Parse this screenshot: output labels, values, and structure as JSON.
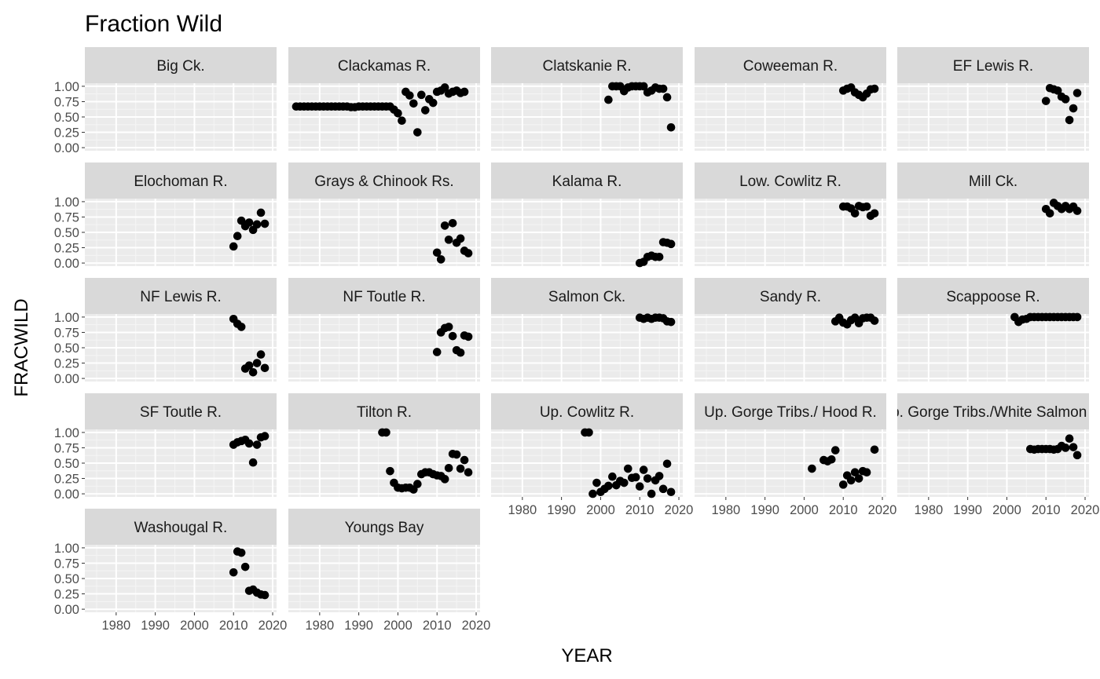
{
  "chart_data": {
    "type": "scatter",
    "title": "Fraction Wild",
    "xlabel": "YEAR",
    "ylabel": "FRACWILD",
    "xlim": [
      1972,
      2021
    ],
    "ylim": [
      -0.05,
      1.05
    ],
    "x_ticks": [
      1980,
      1990,
      2000,
      2010,
      2020
    ],
    "y_ticks": [
      0.0,
      0.25,
      0.5,
      0.75,
      1.0
    ],
    "y_tick_labels": [
      "0.00",
      "0.25",
      "0.50",
      "0.75",
      "1.00"
    ],
    "grid": true,
    "panel_background": "#ebebeb",
    "strip_background": "#d9d9d9",
    "point_color": "#000000",
    "facets": [
      {
        "name": "Big Ck.",
        "points": []
      },
      {
        "name": "Clackamas R.",
        "points": [
          [
            1974,
            0.67
          ],
          [
            1975,
            0.67
          ],
          [
            1976,
            0.67
          ],
          [
            1977,
            0.67
          ],
          [
            1978,
            0.67
          ],
          [
            1979,
            0.67
          ],
          [
            1980,
            0.67
          ],
          [
            1981,
            0.67
          ],
          [
            1982,
            0.67
          ],
          [
            1983,
            0.67
          ],
          [
            1984,
            0.67
          ],
          [
            1985,
            0.67
          ],
          [
            1986,
            0.67
          ],
          [
            1987,
            0.67
          ],
          [
            1988,
            0.66
          ],
          [
            1989,
            0.66
          ],
          [
            1990,
            0.67
          ],
          [
            1991,
            0.67
          ],
          [
            1992,
            0.67
          ],
          [
            1993,
            0.67
          ],
          [
            1994,
            0.67
          ],
          [
            1995,
            0.67
          ],
          [
            1996,
            0.67
          ],
          [
            1997,
            0.67
          ],
          [
            1998,
            0.67
          ],
          [
            1999,
            0.62
          ],
          [
            2000,
            0.56
          ],
          [
            2001,
            0.44
          ],
          [
            2002,
            0.91
          ],
          [
            2003,
            0.85
          ],
          [
            2004,
            0.72
          ],
          [
            2005,
            0.25
          ],
          [
            2006,
            0.86
          ],
          [
            2007,
            0.61
          ],
          [
            2008,
            0.79
          ],
          [
            2009,
            0.73
          ],
          [
            2010,
            0.91
          ],
          [
            2011,
            0.93
          ],
          [
            2012,
            0.98
          ],
          [
            2013,
            0.88
          ],
          [
            2014,
            0.91
          ],
          [
            2015,
            0.93
          ],
          [
            2016,
            0.89
          ],
          [
            2017,
            0.91
          ]
        ]
      },
      {
        "name": "Clatskanie R.",
        "points": [
          [
            2002,
            0.78
          ],
          [
            2003,
            1.0
          ],
          [
            2004,
            1.0
          ],
          [
            2005,
            1.0
          ],
          [
            2006,
            0.92
          ],
          [
            2007,
            0.98
          ],
          [
            2008,
            1.0
          ],
          [
            2009,
            1.0
          ],
          [
            2010,
            1.0
          ],
          [
            2011,
            1.0
          ],
          [
            2012,
            0.9
          ],
          [
            2013,
            0.93
          ],
          [
            2014,
            0.98
          ],
          [
            2015,
            0.96
          ],
          [
            2016,
            0.96
          ],
          [
            2017,
            0.82
          ],
          [
            2018,
            0.33
          ]
        ]
      },
      {
        "name": "Coweeman R.",
        "points": [
          [
            2010,
            0.93
          ],
          [
            2011,
            0.96
          ],
          [
            2012,
            0.98
          ],
          [
            2013,
            0.9
          ],
          [
            2014,
            0.86
          ],
          [
            2015,
            0.82
          ],
          [
            2016,
            0.88
          ],
          [
            2017,
            0.95
          ],
          [
            2018,
            0.96
          ]
        ]
      },
      {
        "name": "EF Lewis R.",
        "points": [
          [
            2010,
            0.76
          ],
          [
            2011,
            0.97
          ],
          [
            2012,
            0.95
          ],
          [
            2013,
            0.93
          ],
          [
            2014,
            0.83
          ],
          [
            2015,
            0.79
          ],
          [
            2016,
            0.45
          ],
          [
            2017,
            0.64
          ],
          [
            2018,
            0.89
          ]
        ]
      },
      {
        "name": "Elochoman R.",
        "points": [
          [
            2010,
            0.27
          ],
          [
            2011,
            0.44
          ],
          [
            2012,
            0.69
          ],
          [
            2013,
            0.6
          ],
          [
            2014,
            0.66
          ],
          [
            2015,
            0.54
          ],
          [
            2016,
            0.63
          ],
          [
            2017,
            0.82
          ],
          [
            2018,
            0.64
          ]
        ]
      },
      {
        "name": "Grays & Chinook Rs.",
        "points": [
          [
            2010,
            0.17
          ],
          [
            2011,
            0.06
          ],
          [
            2012,
            0.61
          ],
          [
            2013,
            0.38
          ],
          [
            2014,
            0.65
          ],
          [
            2015,
            0.33
          ],
          [
            2016,
            0.4
          ],
          [
            2017,
            0.2
          ],
          [
            2018,
            0.16
          ]
        ]
      },
      {
        "name": "Kalama R.",
        "points": [
          [
            2010,
            0.0
          ],
          [
            2011,
            0.02
          ],
          [
            2012,
            0.1
          ],
          [
            2013,
            0.12
          ],
          [
            2014,
            0.1
          ],
          [
            2015,
            0.1
          ],
          [
            2016,
            0.34
          ],
          [
            2017,
            0.33
          ],
          [
            2018,
            0.31
          ]
        ]
      },
      {
        "name": "Low. Cowlitz R.",
        "points": [
          [
            2010,
            0.92
          ],
          [
            2011,
            0.92
          ],
          [
            2012,
            0.89
          ],
          [
            2013,
            0.81
          ],
          [
            2014,
            0.93
          ],
          [
            2015,
            0.91
          ],
          [
            2016,
            0.92
          ],
          [
            2017,
            0.77
          ],
          [
            2018,
            0.81
          ]
        ]
      },
      {
        "name": "Mill Ck.",
        "points": [
          [
            2010,
            0.88
          ],
          [
            2011,
            0.81
          ],
          [
            2012,
            0.98
          ],
          [
            2013,
            0.93
          ],
          [
            2014,
            0.88
          ],
          [
            2015,
            0.93
          ],
          [
            2016,
            0.88
          ],
          [
            2017,
            0.92
          ],
          [
            2018,
            0.85
          ]
        ]
      },
      {
        "name": "NF Lewis R.",
        "points": [
          [
            2010,
            0.97
          ],
          [
            2011,
            0.89
          ],
          [
            2012,
            0.84
          ],
          [
            2013,
            0.16
          ],
          [
            2014,
            0.21
          ],
          [
            2015,
            0.1
          ],
          [
            2016,
            0.25
          ],
          [
            2017,
            0.39
          ],
          [
            2018,
            0.17
          ]
        ]
      },
      {
        "name": "NF Toutle R.",
        "points": [
          [
            2010,
            0.43
          ],
          [
            2011,
            0.75
          ],
          [
            2012,
            0.82
          ],
          [
            2013,
            0.84
          ],
          [
            2014,
            0.69
          ],
          [
            2015,
            0.46
          ],
          [
            2016,
            0.42
          ],
          [
            2017,
            0.7
          ],
          [
            2018,
            0.68
          ]
        ]
      },
      {
        "name": "Salmon Ck.",
        "points": [
          [
            2010,
            0.99
          ],
          [
            2011,
            0.97
          ],
          [
            2012,
            0.99
          ],
          [
            2013,
            0.97
          ],
          [
            2014,
            0.99
          ],
          [
            2015,
            0.99
          ],
          [
            2016,
            0.98
          ],
          [
            2017,
            0.93
          ],
          [
            2018,
            0.92
          ]
        ]
      },
      {
        "name": "Sandy R.",
        "points": [
          [
            2008,
            0.93
          ],
          [
            2009,
            0.99
          ],
          [
            2010,
            0.91
          ],
          [
            2011,
            0.88
          ],
          [
            2012,
            0.95
          ],
          [
            2013,
            0.99
          ],
          [
            2014,
            0.9
          ],
          [
            2015,
            0.98
          ],
          [
            2016,
            0.99
          ],
          [
            2017,
            0.99
          ],
          [
            2018,
            0.94
          ]
        ]
      },
      {
        "name": "Scappoose R.",
        "points": [
          [
            2002,
            1.0
          ],
          [
            2003,
            0.92
          ],
          [
            2004,
            0.96
          ],
          [
            2005,
            0.97
          ],
          [
            2006,
            1.0
          ],
          [
            2007,
            1.0
          ],
          [
            2008,
            1.0
          ],
          [
            2009,
            1.0
          ],
          [
            2010,
            1.0
          ],
          [
            2011,
            1.0
          ],
          [
            2012,
            1.0
          ],
          [
            2013,
            1.0
          ],
          [
            2014,
            1.0
          ],
          [
            2015,
            1.0
          ],
          [
            2016,
            1.0
          ],
          [
            2017,
            1.0
          ],
          [
            2018,
            1.0
          ]
        ]
      },
      {
        "name": "SF Toutle R.",
        "points": [
          [
            2010,
            0.8
          ],
          [
            2011,
            0.84
          ],
          [
            2012,
            0.86
          ],
          [
            2013,
            0.88
          ],
          [
            2014,
            0.82
          ],
          [
            2015,
            0.51
          ],
          [
            2016,
            0.8
          ],
          [
            2017,
            0.92
          ],
          [
            2018,
            0.94
          ]
        ]
      },
      {
        "name": "Tilton R.",
        "points": [
          [
            1996,
            1.0
          ],
          [
            1997,
            1.0
          ],
          [
            1998,
            0.37
          ],
          [
            1999,
            0.18
          ],
          [
            2000,
            0.1
          ],
          [
            2001,
            0.09
          ],
          [
            2002,
            0.1
          ],
          [
            2003,
            0.1
          ],
          [
            2004,
            0.07
          ],
          [
            2005,
            0.16
          ],
          [
            2006,
            0.32
          ],
          [
            2007,
            0.35
          ],
          [
            2008,
            0.35
          ],
          [
            2009,
            0.32
          ],
          [
            2010,
            0.3
          ],
          [
            2011,
            0.29
          ],
          [
            2012,
            0.24
          ],
          [
            2013,
            0.42
          ],
          [
            2014,
            0.65
          ],
          [
            2015,
            0.64
          ],
          [
            2016,
            0.41
          ],
          [
            2017,
            0.55
          ],
          [
            2018,
            0.35
          ]
        ]
      },
      {
        "name": "Up. Cowlitz R.",
        "points": [
          [
            1996,
            1.0
          ],
          [
            1997,
            1.0
          ],
          [
            1998,
            0.0
          ],
          [
            1999,
            0.18
          ],
          [
            2000,
            0.03
          ],
          [
            2001,
            0.08
          ],
          [
            2002,
            0.13
          ],
          [
            2003,
            0.28
          ],
          [
            2004,
            0.14
          ],
          [
            2005,
            0.21
          ],
          [
            2006,
            0.18
          ],
          [
            2007,
            0.41
          ],
          [
            2008,
            0.26
          ],
          [
            2009,
            0.27
          ],
          [
            2010,
            0.12
          ],
          [
            2011,
            0.39
          ],
          [
            2012,
            0.25
          ],
          [
            2013,
            0.0
          ],
          [
            2014,
            0.22
          ],
          [
            2015,
            0.29
          ],
          [
            2016,
            0.08
          ],
          [
            2017,
            0.49
          ],
          [
            2018,
            0.03
          ]
        ]
      },
      {
        "name": "Up. Gorge Tribs./ Hood R.",
        "points": [
          [
            2002,
            0.41
          ],
          [
            2005,
            0.55
          ],
          [
            2006,
            0.53
          ],
          [
            2007,
            0.56
          ],
          [
            2008,
            0.71
          ],
          [
            2010,
            0.15
          ],
          [
            2011,
            0.3
          ],
          [
            2012,
            0.22
          ],
          [
            2013,
            0.35
          ],
          [
            2014,
            0.25
          ],
          [
            2015,
            0.37
          ],
          [
            2016,
            0.35
          ],
          [
            2018,
            0.72
          ]
        ]
      },
      {
        "name": "Up. Gorge Tribs./White Salmon R.",
        "points": [
          [
            2006,
            0.73
          ],
          [
            2007,
            0.72
          ],
          [
            2008,
            0.73
          ],
          [
            2009,
            0.73
          ],
          [
            2010,
            0.73
          ],
          [
            2011,
            0.73
          ],
          [
            2012,
            0.72
          ],
          [
            2013,
            0.73
          ],
          [
            2014,
            0.78
          ],
          [
            2015,
            0.75
          ],
          [
            2016,
            0.9
          ],
          [
            2017,
            0.76
          ],
          [
            2018,
            0.63
          ]
        ]
      },
      {
        "name": "Washougal R.",
        "points": [
          [
            2010,
            0.6
          ],
          [
            2011,
            0.94
          ],
          [
            2012,
            0.92
          ],
          [
            2013,
            0.69
          ],
          [
            2014,
            0.3
          ],
          [
            2015,
            0.32
          ],
          [
            2016,
            0.27
          ],
          [
            2017,
            0.24
          ],
          [
            2018,
            0.23
          ]
        ]
      },
      {
        "name": "Youngs Bay",
        "points": []
      }
    ]
  }
}
